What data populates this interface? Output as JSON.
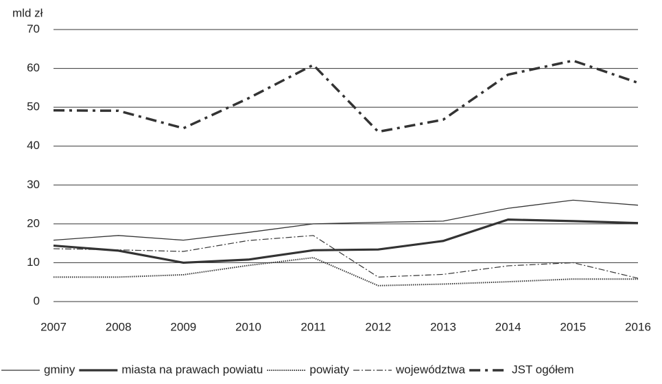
{
  "chart_data": {
    "type": "line",
    "y_axis_label": "mld zł",
    "x": [
      2007,
      2008,
      2009,
      2010,
      2011,
      2012,
      2013,
      2014,
      2015,
      2016
    ],
    "xlim": [
      2007,
      2016
    ],
    "xticks": [
      2007,
      2008,
      2009,
      2010,
      2011,
      2012,
      2013,
      2014,
      2015,
      2016
    ],
    "ylim": [
      0,
      70
    ],
    "yticks": [
      0,
      10,
      20,
      30,
      40,
      50,
      60,
      70
    ],
    "grid": true,
    "legend": "bottom",
    "series": [
      {
        "name": "gminy",
        "color": "#333333",
        "width": 1.3,
        "dash": "none",
        "values": [
          15.8,
          17.0,
          15.8,
          17.8,
          20.0,
          20.4,
          20.7,
          24.0,
          26.1,
          24.8
        ]
      },
      {
        "name": "miasta na prawach powiatu",
        "color": "#333333",
        "width": 3.2,
        "dash": "none",
        "values": [
          14.4,
          13.1,
          10.0,
          10.8,
          13.2,
          13.4,
          15.6,
          21.1,
          20.7,
          20.2
        ]
      },
      {
        "name": "powiaty",
        "color": "#333333",
        "width": 2,
        "dash": "1.5 1.5",
        "values": [
          6.3,
          6.3,
          6.9,
          9.3,
          11.3,
          4.1,
          4.5,
          5.1,
          5.8,
          5.8
        ]
      },
      {
        "name": "województwa",
        "color": "#333333",
        "width": 1.2,
        "dash": "9 3 2 3",
        "values": [
          13.6,
          13.3,
          12.9,
          15.7,
          17.0,
          6.3,
          7.0,
          9.2,
          10.0,
          6.0
        ]
      },
      {
        "name": "JST ogółem",
        "color": "#333333",
        "width": 3.5,
        "dash": "16 7 4 7",
        "values": [
          49.2,
          49.1,
          44.6,
          52.3,
          60.9,
          43.7,
          46.8,
          58.4,
          62.0,
          56.3
        ]
      }
    ]
  }
}
